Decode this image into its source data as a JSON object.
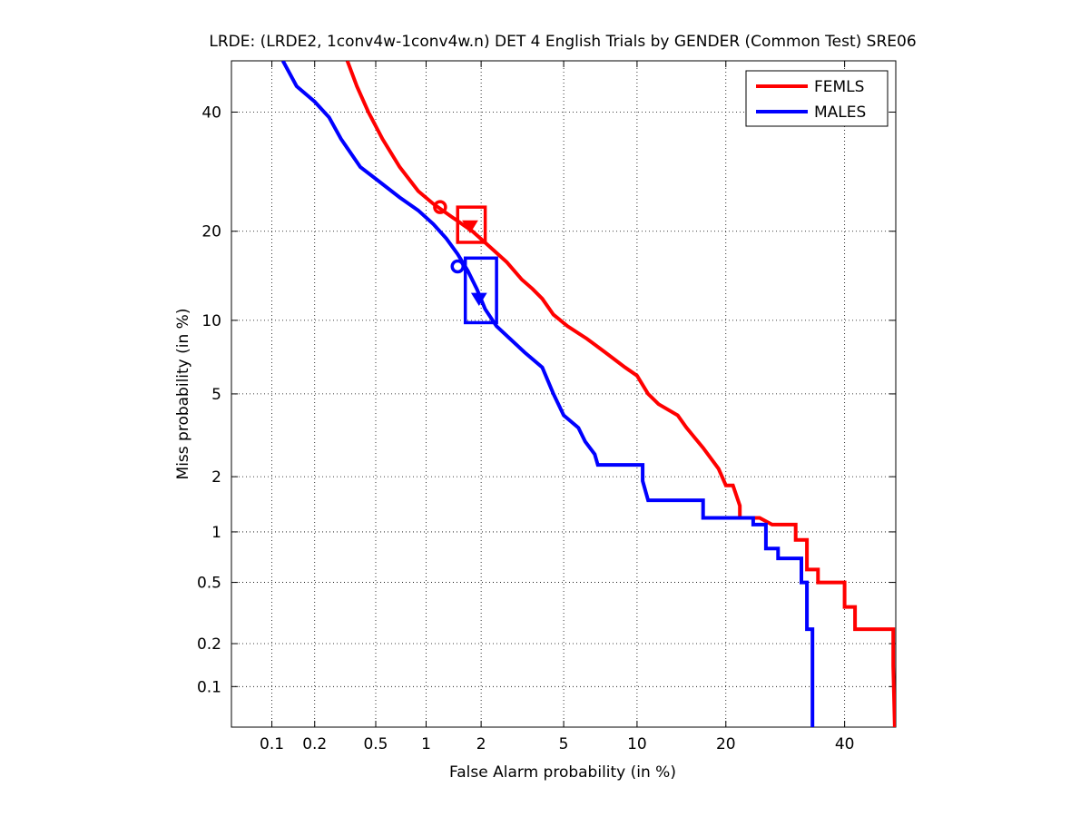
{
  "chart_data": {
    "type": "line",
    "title": "LRDE: (LRDE2, 1conv4w-1conv4w.n) DET 4 English Trials by GENDER (Common Test) SRE06",
    "xlabel": "False Alarm probability (in %)",
    "ylabel": "Miss probability (in %)",
    "x_scale": "normal-deviate",
    "y_scale": "normal-deviate",
    "xlim": [
      0.05,
      50
    ],
    "ylim": [
      0.05,
      50
    ],
    "x_ticks": [
      0.1,
      0.2,
      0.5,
      1,
      2,
      5,
      10,
      20,
      40
    ],
    "x_tick_labels": [
      "0.1",
      "0.2",
      "0.5",
      "1",
      "2",
      "5",
      "10",
      "20",
      "40"
    ],
    "y_ticks": [
      0.1,
      0.2,
      0.5,
      1,
      2,
      5,
      10,
      20,
      40
    ],
    "y_tick_labels": [
      "0.1",
      "0.2",
      "0.5",
      "1",
      "2",
      "5",
      "10",
      "20",
      "40"
    ],
    "grid": true,
    "legend_position": "top-right",
    "series": [
      {
        "name": "FEMLS",
        "color": "#ff0000",
        "points": [
          [
            0.33,
            50
          ],
          [
            0.38,
            45
          ],
          [
            0.45,
            40
          ],
          [
            0.55,
            35
          ],
          [
            0.7,
            30
          ],
          [
            0.9,
            26
          ],
          [
            1.1,
            24
          ],
          [
            1.4,
            22
          ],
          [
            1.8,
            20
          ],
          [
            2.2,
            18
          ],
          [
            2.7,
            16
          ],
          [
            3.2,
            14
          ],
          [
            3.6,
            13
          ],
          [
            4,
            12
          ],
          [
            4.5,
            10.5
          ],
          [
            5.2,
            9.5
          ],
          [
            6.3,
            8.5
          ],
          [
            7.5,
            7.5
          ],
          [
            9,
            6.5
          ],
          [
            10,
            6
          ],
          [
            11,
            5
          ],
          [
            12,
            4.5
          ],
          [
            14,
            4
          ],
          [
            15,
            3.5
          ],
          [
            17,
            2.8
          ],
          [
            19,
            2.2
          ],
          [
            20,
            1.8
          ],
          [
            21,
            1.8
          ],
          [
            22,
            1.4
          ],
          [
            22,
            1.2
          ],
          [
            25,
            1.2
          ],
          [
            27,
            1.1
          ],
          [
            31,
            1.1
          ],
          [
            31,
            0.9
          ],
          [
            33,
            0.9
          ],
          [
            33,
            0.6
          ],
          [
            35,
            0.6
          ],
          [
            35,
            0.5
          ],
          [
            40,
            0.5
          ],
          [
            40,
            0.35
          ],
          [
            42,
            0.35
          ],
          [
            42,
            0.25
          ],
          [
            49.5,
            0.25
          ],
          [
            49.5,
            0.14
          ],
          [
            49.8,
            0.05
          ]
        ]
      },
      {
        "name": "MALES",
        "color": "#0000ff",
        "points": [
          [
            0.12,
            50
          ],
          [
            0.15,
            45
          ],
          [
            0.2,
            42
          ],
          [
            0.25,
            39
          ],
          [
            0.3,
            35
          ],
          [
            0.4,
            30
          ],
          [
            0.5,
            28
          ],
          [
            0.7,
            25
          ],
          [
            0.9,
            23
          ],
          [
            1.1,
            21
          ],
          [
            1.3,
            19
          ],
          [
            1.5,
            17
          ],
          [
            1.7,
            15
          ],
          [
            1.9,
            13
          ],
          [
            2.1,
            11
          ],
          [
            2.4,
            9.5
          ],
          [
            2.8,
            8.5
          ],
          [
            3.3,
            7.5
          ],
          [
            4,
            6.5
          ],
          [
            4.5,
            5
          ],
          [
            5,
            4
          ],
          [
            5.8,
            3.5
          ],
          [
            6.2,
            3
          ],
          [
            6.8,
            2.6
          ],
          [
            7,
            2.3
          ],
          [
            9,
            2.3
          ],
          [
            10.5,
            2.3
          ],
          [
            10.5,
            1.9
          ],
          [
            11,
            1.5
          ],
          [
            17,
            1.5
          ],
          [
            17,
            1.2
          ],
          [
            24,
            1.2
          ],
          [
            24,
            1.1
          ],
          [
            26,
            1.1
          ],
          [
            26,
            0.8
          ],
          [
            28,
            0.8
          ],
          [
            28,
            0.7
          ],
          [
            32,
            0.7
          ],
          [
            32,
            0.5
          ],
          [
            33,
            0.5
          ],
          [
            33,
            0.25
          ],
          [
            34,
            0.25
          ],
          [
            34,
            0.05
          ]
        ]
      }
    ],
    "markers": [
      {
        "series": "FEMLS",
        "shape": "circle",
        "x": 1.2,
        "y": 23.5
      },
      {
        "series": "FEMLS",
        "shape": "triangle-down",
        "x": 1.75,
        "y": 20.7
      },
      {
        "series": "FEMLS",
        "shape": "rectangle",
        "x_range": [
          1.5,
          2.1
        ],
        "y_range": [
          18.5,
          23.5
        ]
      },
      {
        "series": "MALES",
        "shape": "circle",
        "x": 1.5,
        "y": 15.5
      },
      {
        "series": "MALES",
        "shape": "triangle-down",
        "x": 1.95,
        "y": 12
      },
      {
        "series": "MALES",
        "shape": "rectangle",
        "x_range": [
          1.65,
          2.4
        ],
        "y_range": [
          9.8,
          16.5
        ]
      }
    ]
  }
}
